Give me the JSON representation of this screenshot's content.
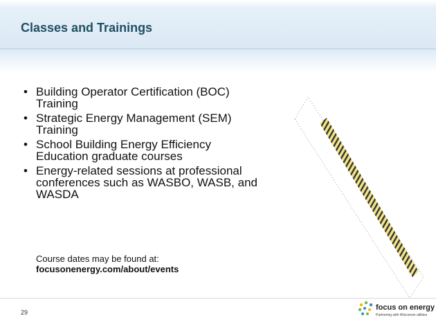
{
  "header": {
    "title": "Classes and Trainings"
  },
  "bullets": [
    "Building Operator Certification (BOC) Training",
    "Strategic Energy Management (SEM) Training",
    "School Building Energy Efficiency Education graduate courses",
    "Energy-related sessions at professional conferences such as WASBO, WASB, and WASDA"
  ],
  "note": {
    "text": "Course dates may be found at:",
    "link": "focusonenergy.com/about/events"
  },
  "footer": {
    "page_number": "29",
    "logo": {
      "name": "focus on energy",
      "tagline": "Partnering with Wisconsin utilities"
    }
  }
}
